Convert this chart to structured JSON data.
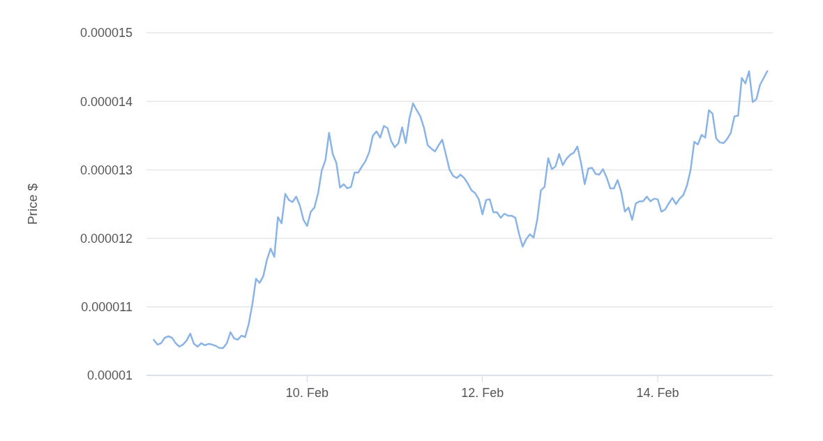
{
  "chart_data": {
    "type": "line",
    "ylabel": "Price $",
    "x": [
      "--02-08T06:00",
      "--02-08T07:00",
      "--02-08T08:00",
      "--02-08T09:00",
      "--02-08T10:00",
      "--02-08T11:00",
      "--02-08T12:00",
      "--02-08T13:00",
      "--02-08T14:00",
      "--02-08T15:00",
      "--02-08T16:00",
      "--02-08T17:00",
      "--02-08T18:00",
      "--02-08T19:00",
      "--02-08T20:00",
      "--02-08T21:00",
      "--02-08T22:00",
      "--02-08T23:00",
      "--02-09T00:00",
      "--02-09T01:00",
      "--02-09T02:00",
      "--02-09T03:00",
      "--02-09T04:00",
      "--02-09T05:00",
      "--02-09T06:00",
      "--02-09T07:00",
      "--02-09T08:00",
      "--02-09T09:00",
      "--02-09T10:00",
      "--02-09T11:00",
      "--02-09T12:00",
      "--02-09T13:00",
      "--02-09T14:00",
      "--02-09T15:00",
      "--02-09T16:00",
      "--02-09T17:00",
      "--02-09T18:00",
      "--02-09T19:00",
      "--02-09T20:00",
      "--02-09T21:00",
      "--02-09T22:00",
      "--02-09T23:00",
      "--02-10T00:00",
      "--02-10T01:00",
      "--02-10T02:00",
      "--02-10T03:00",
      "--02-10T04:00",
      "--02-10T05:00",
      "--02-10T06:00",
      "--02-10T07:00",
      "--02-10T08:00",
      "--02-10T09:00",
      "--02-10T10:00",
      "--02-10T11:00",
      "--02-10T12:00",
      "--02-10T13:00",
      "--02-10T14:00",
      "--02-10T15:00",
      "--02-10T16:00",
      "--02-10T17:00",
      "--02-10T18:00",
      "--02-10T19:00",
      "--02-10T20:00",
      "--02-10T21:00",
      "--02-10T22:00",
      "--02-10T23:00",
      "--02-11T00:00",
      "--02-11T01:00",
      "--02-11T02:00",
      "--02-11T03:00",
      "--02-11T04:00",
      "--02-11T05:00",
      "--02-11T06:00",
      "--02-11T07:00",
      "--02-11T08:00",
      "--02-11T09:00",
      "--02-11T10:00",
      "--02-11T11:00",
      "--02-11T12:00",
      "--02-11T13:00",
      "--02-11T14:00",
      "--02-11T15:00",
      "--02-11T16:00",
      "--02-11T17:00",
      "--02-11T18:00",
      "--02-11T19:00",
      "--02-11T20:00",
      "--02-11T21:00",
      "--02-11T22:00",
      "--02-11T23:00",
      "--02-12T00:00",
      "--02-12T01:00",
      "--02-12T02:00",
      "--02-12T03:00",
      "--02-12T04:00",
      "--02-12T05:00",
      "--02-12T06:00",
      "--02-12T07:00",
      "--02-12T08:00",
      "--02-12T09:00",
      "--02-12T10:00",
      "--02-12T11:00",
      "--02-12T12:00",
      "--02-12T13:00",
      "--02-12T14:00",
      "--02-12T15:00",
      "--02-12T16:00",
      "--02-12T17:00",
      "--02-12T18:00",
      "--02-12T19:00",
      "--02-12T20:00",
      "--02-12T21:00",
      "--02-12T22:00",
      "--02-12T23:00",
      "--02-13T00:00",
      "--02-13T01:00",
      "--02-13T02:00",
      "--02-13T03:00",
      "--02-13T04:00",
      "--02-13T05:00",
      "--02-13T06:00",
      "--02-13T07:00",
      "--02-13T08:00",
      "--02-13T09:00",
      "--02-13T10:00",
      "--02-13T11:00",
      "--02-13T12:00",
      "--02-13T13:00",
      "--02-13T14:00",
      "--02-13T15:00",
      "--02-13T16:00",
      "--02-13T17:00",
      "--02-13T18:00",
      "--02-13T19:00",
      "--02-13T20:00",
      "--02-13T21:00",
      "--02-13T22:00",
      "--02-13T23:00",
      "--02-14T00:00",
      "--02-14T01:00",
      "--02-14T02:00",
      "--02-14T03:00",
      "--02-14T04:00",
      "--02-14T05:00",
      "--02-14T06:00",
      "--02-14T07:00",
      "--02-14T08:00",
      "--02-14T09:00",
      "--02-14T10:00",
      "--02-14T11:00",
      "--02-14T12:00",
      "--02-14T13:00",
      "--02-14T14:00",
      "--02-14T15:00",
      "--02-14T16:00",
      "--02-14T17:00",
      "--02-14T18:00",
      "--02-14T19:00",
      "--02-14T20:00",
      "--02-14T21:00",
      "--02-14T22:00",
      "--02-14T23:00",
      "--02-15T00:00",
      "--02-15T01:00",
      "--02-15T02:00",
      "--02-15T03:00",
      "--02-15T04:00",
      "--02-15T06:00"
    ],
    "values": [
      1.052e-05,
      1.045e-05,
      1.047e-05,
      1.055e-05,
      1.057e-05,
      1.055e-05,
      1.047e-05,
      1.042e-05,
      1.045e-05,
      1.051e-05,
      1.061e-05,
      1.046e-05,
      1.042e-05,
      1.047e-05,
      1.044e-05,
      1.046e-05,
      1.045e-05,
      1.043e-05,
      1.04e-05,
      1.04e-05,
      1.047e-05,
      1.063e-05,
      1.054e-05,
      1.052e-05,
      1.058e-05,
      1.056e-05,
      1.075e-05,
      1.104e-05,
      1.141e-05,
      1.135e-05,
      1.145e-05,
      1.169e-05,
      1.185e-05,
      1.173e-05,
      1.231e-05,
      1.222e-05,
      1.265e-05,
      1.256e-05,
      1.253e-05,
      1.261e-05,
      1.248e-05,
      1.227e-05,
      1.218e-05,
      1.239e-05,
      1.245e-05,
      1.266e-05,
      1.299e-05,
      1.314e-05,
      1.354e-05,
      1.323e-05,
      1.31e-05,
      1.274e-05,
      1.279e-05,
      1.273e-05,
      1.275e-05,
      1.296e-05,
      1.296e-05,
      1.305e-05,
      1.313e-05,
      1.326e-05,
      1.35e-05,
      1.356e-05,
      1.347e-05,
      1.364e-05,
      1.361e-05,
      1.342e-05,
      1.333e-05,
      1.339e-05,
      1.362e-05,
      1.339e-05,
      1.375e-05,
      1.397e-05,
      1.387e-05,
      1.378e-05,
      1.361e-05,
      1.336e-05,
      1.331e-05,
      1.327e-05,
      1.336e-05,
      1.344e-05,
      1.322e-05,
      1.3e-05,
      1.291e-05,
      1.288e-05,
      1.293e-05,
      1.288e-05,
      1.28e-05,
      1.27e-05,
      1.266e-05,
      1.257e-05,
      1.235e-05,
      1.256e-05,
      1.257e-05,
      1.238e-05,
      1.238e-05,
      1.23e-05,
      1.236e-05,
      1.233e-05,
      1.233e-05,
      1.23e-05,
      1.207e-05,
      1.188e-05,
      1.199e-05,
      1.206e-05,
      1.201e-05,
      1.227e-05,
      1.27e-05,
      1.275e-05,
      1.317e-05,
      1.301e-05,
      1.305e-05,
      1.323e-05,
      1.307e-05,
      1.316e-05,
      1.322e-05,
      1.325e-05,
      1.334e-05,
      1.31e-05,
      1.279e-05,
      1.302e-05,
      1.303e-05,
      1.294e-05,
      1.293e-05,
      1.301e-05,
      1.289e-05,
      1.273e-05,
      1.273e-05,
      1.285e-05,
      1.268e-05,
      1.239e-05,
      1.245e-05,
      1.227e-05,
      1.251e-05,
      1.254e-05,
      1.254e-05,
      1.261e-05,
      1.254e-05,
      1.258e-05,
      1.257e-05,
      1.239e-05,
      1.242e-05,
      1.251e-05,
      1.259e-05,
      1.25e-05,
      1.258e-05,
      1.263e-05,
      1.277e-05,
      1.3e-05,
      1.341e-05,
      1.337e-05,
      1.351e-05,
      1.347e-05,
      1.387e-05,
      1.382e-05,
      1.346e-05,
      1.34e-05,
      1.339e-05,
      1.345e-05,
      1.354e-05,
      1.378e-05,
      1.379e-05,
      1.434e-05,
      1.426e-05,
      1.444e-05,
      1.399e-05,
      1.403e-05,
      1.424e-05,
      1.444e-05
    ],
    "color": "#8bb4e6",
    "xlim": [
      "--02-08T04:00",
      "--02-15T07:30"
    ],
    "xticks": [
      {
        "value": "--02-10",
        "label": "10. Feb"
      },
      {
        "value": "--02-12",
        "label": "12. Feb"
      },
      {
        "value": "--02-14",
        "label": "14. Feb"
      }
    ],
    "ylim": [
      1e-05,
      1.5e-05
    ],
    "yticks": [
      {
        "value": 1e-05,
        "label": "0.00001"
      },
      {
        "value": 1.1e-05,
        "label": "0.000011"
      },
      {
        "value": 1.2e-05,
        "label": "0.000012"
      },
      {
        "value": 1.3e-05,
        "label": "0.000013"
      },
      {
        "value": 1.4e-05,
        "label": "0.000014"
      },
      {
        "value": 1.5e-05,
        "label": "0.000015"
      }
    ],
    "grid": "y",
    "legend": false,
    "marker": "none",
    "line_style": "solid"
  }
}
